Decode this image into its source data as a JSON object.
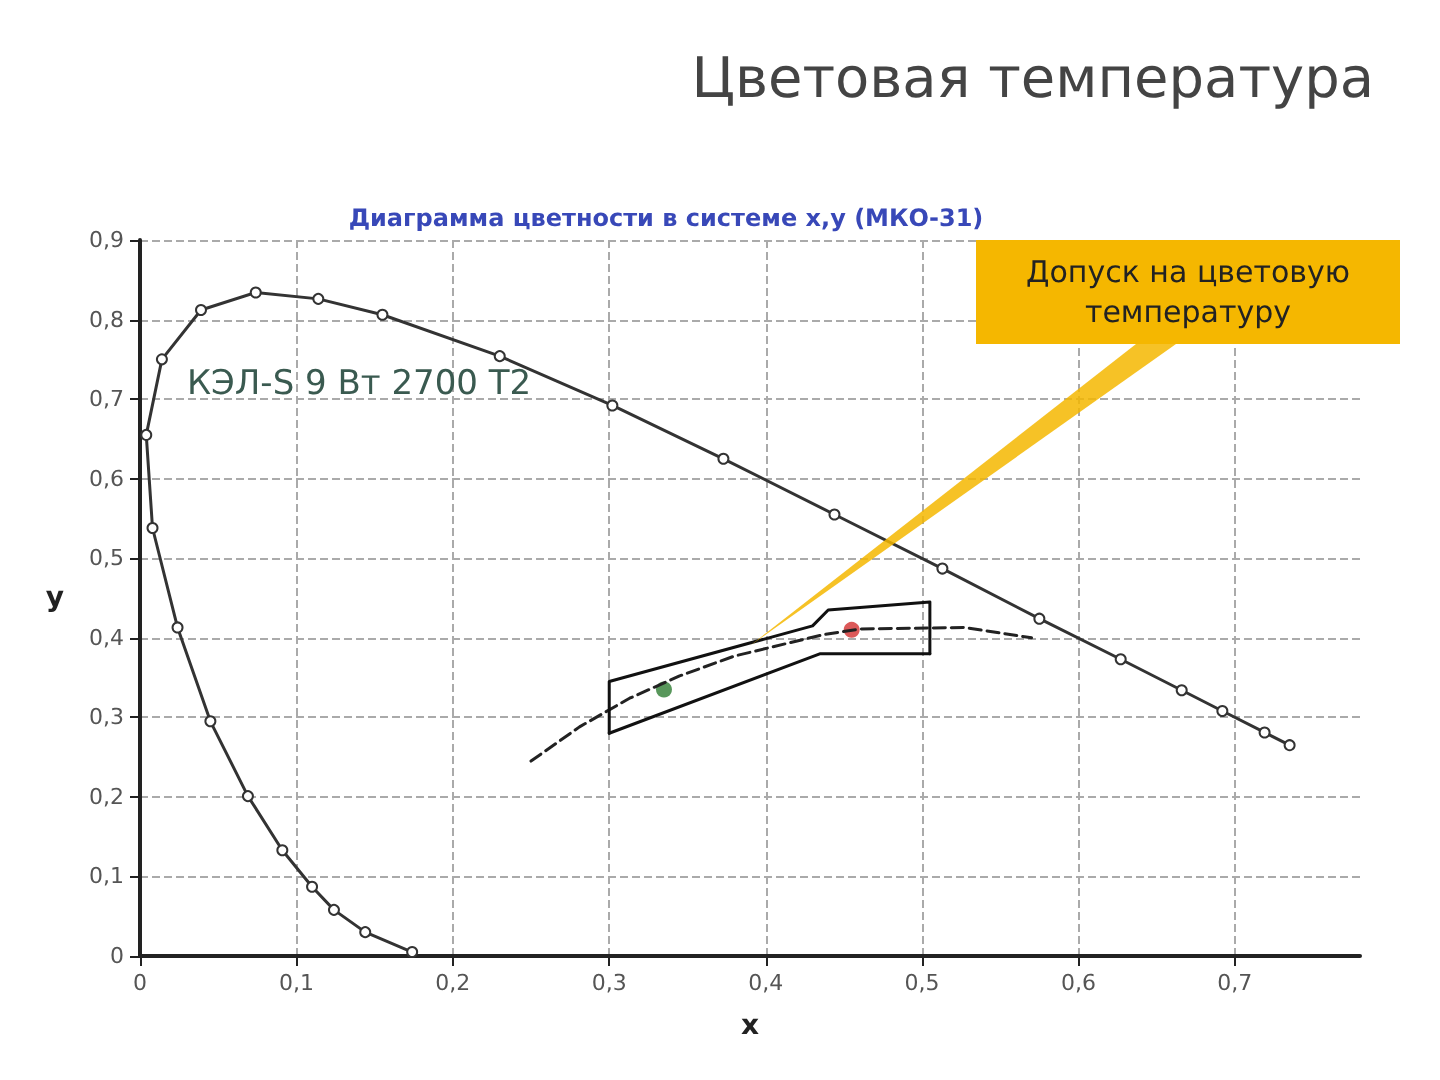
{
  "chart_data": {
    "type": "line",
    "title": "Цветовая температура",
    "subtitle": "Диаграмма цветности в системе x,y (МКО-31)",
    "xlabel": "x",
    "ylabel": "y",
    "xlim": [
      0,
      0.78
    ],
    "ylim": [
      0,
      0.9
    ],
    "xticks": [
      0,
      {
        "value": 0.1,
        "label": "0,1"
      },
      {
        "value": 0.2,
        "label": "0,2"
      },
      {
        "value": 0.3,
        "label": "0,3"
      },
      {
        "value": 0.4,
        "label": "0,4"
      },
      {
        "value": 0.5,
        "label": "0,5"
      },
      {
        "value": 0.6,
        "label": "0,6"
      },
      {
        "value": 0.7,
        "label": "0,7"
      }
    ],
    "yticks": [
      0,
      {
        "value": 0.1,
        "label": "0,1"
      },
      {
        "value": 0.2,
        "label": "0,2"
      },
      {
        "value": 0.3,
        "label": "0,3"
      },
      {
        "value": 0.4,
        "label": "0,4"
      },
      {
        "value": 0.5,
        "label": "0,5"
      },
      {
        "value": 0.6,
        "label": "0,6"
      },
      {
        "value": 0.7,
        "label": "0,7"
      },
      {
        "value": 0.8,
        "label": "0,8"
      },
      {
        "value": 0.9,
        "label": "0,9"
      }
    ],
    "grid": true,
    "series": [
      {
        "color": "#333333",
        "marker": "circle",
        "line_style": "solid",
        "x": [
          0.174,
          0.144,
          0.124,
          0.11,
          0.091,
          0.069,
          0.045,
          0.024,
          0.008,
          0.004,
          0.014,
          0.039,
          0.074,
          0.114,
          0.155,
          0.23,
          0.302,
          0.373,
          0.444,
          0.513,
          0.575,
          0.627,
          0.666,
          0.692,
          0.719,
          0.735
        ],
        "values": [
          0.005,
          0.03,
          0.058,
          0.087,
          0.133,
          0.201,
          0.295,
          0.413,
          0.538,
          0.655,
          0.75,
          0.812,
          0.834,
          0.826,
          0.806,
          0.754,
          0.692,
          0.625,
          0.555,
          0.487,
          0.424,
          0.373,
          0.334,
          0.308,
          0.281,
          0.265
        ]
      },
      {
        "color": "#222222",
        "marker": "none",
        "line_style": "dashed",
        "x": [
          0.25,
          0.281,
          0.313,
          0.345,
          0.38,
          0.437,
          0.46,
          0.527,
          0.57
        ],
        "values": [
          0.245,
          0.288,
          0.324,
          0.352,
          0.377,
          0.404,
          0.411,
          0.413,
          0.4
        ]
      },
      {
        "color": "#111111",
        "marker": "none",
        "line_style": "solid",
        "x": [
          0.3,
          0.3,
          0.43,
          0.44,
          0.505,
          0.505
        ],
        "values": [
          0.28,
          0.345,
          0.415,
          0.435,
          0.445,
          0.38
        ]
      },
      {
        "color": "#111111",
        "marker": "none",
        "line_style": "solid",
        "x": [
          0.3,
          0.435,
          0.505
        ],
        "values": [
          0.28,
          0.38,
          0.38
        ]
      },
      {
        "type": "scatter",
        "marker": "circle",
        "colors": [
          "#2e7d32",
          "#d32f2f"
        ],
        "x": [
          0.335,
          0.455
        ],
        "values": [
          0.335,
          0.41
        ]
      }
    ],
    "annotations": [
      "КЭЛ-S 9 Вт 2700 Т2",
      "Допуск на цветовую температуру"
    ]
  }
}
